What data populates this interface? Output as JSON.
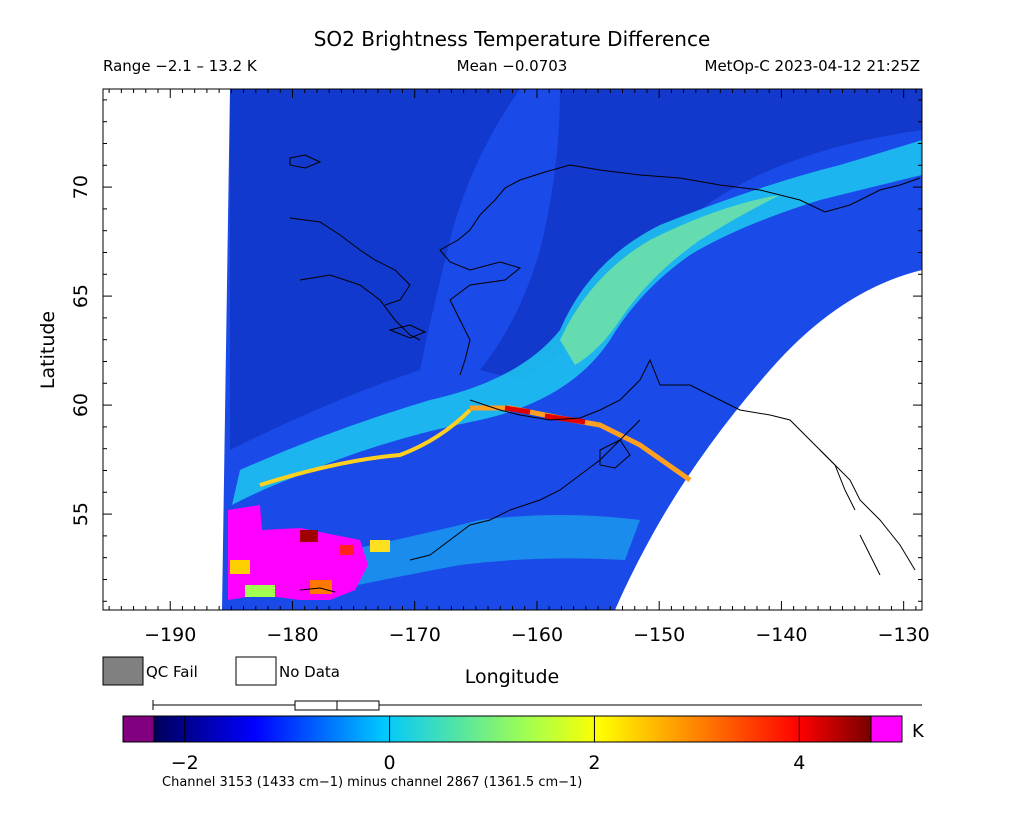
{
  "title": "SO2 Brightness Temperature Difference",
  "range_label": "Range −2.1 – 13.2 K",
  "mean_label": "Mean −0.0703",
  "satellite_label": "MetOp-C 2023-04-12 21:25Z",
  "axes": {
    "xlabel": "Longitude",
    "ylabel": "Latitude",
    "xticks": [
      {
        "value": -190,
        "label": "−190"
      },
      {
        "value": -180,
        "label": "−180"
      },
      {
        "value": -170,
        "label": "−170"
      },
      {
        "value": -160,
        "label": "−160"
      },
      {
        "value": -150,
        "label": "−150"
      },
      {
        "value": -140,
        "label": "−140"
      },
      {
        "value": -130,
        "label": "−130"
      }
    ],
    "yticks": [
      {
        "value": 55,
        "label": "55"
      },
      {
        "value": 60,
        "label": "60"
      },
      {
        "value": 65,
        "label": "65"
      },
      {
        "value": 70,
        "label": "70"
      }
    ],
    "xlim": [
      -195.5,
      -128.5
    ],
    "ylim": [
      50.6,
      74.5
    ]
  },
  "legend": {
    "qc_fail_label": "QC Fail",
    "qc_fail_color": "#808080",
    "no_data_label": "No Data",
    "no_data_color": "#ffffff"
  },
  "colorbar": {
    "unit": "K",
    "min": -2.3,
    "max": 4.7,
    "ticks": [
      {
        "value": -2,
        "label": "−2"
      },
      {
        "value": 0,
        "label": "0"
      },
      {
        "value": 2,
        "label": "2"
      },
      {
        "value": 4,
        "label": "4"
      }
    ],
    "below_color": "#800080",
    "above_color": "#ff00ff",
    "stops": [
      "#00005a",
      "#0000ff",
      "#00c8ff",
      "#a0ff50",
      "#ffff00",
      "#ff7800",
      "#ff0000",
      "#780000"
    ]
  },
  "footnote": "Channel 3153 (1433 cm−1) minus channel 2867 (1361.5 cm−1)"
}
